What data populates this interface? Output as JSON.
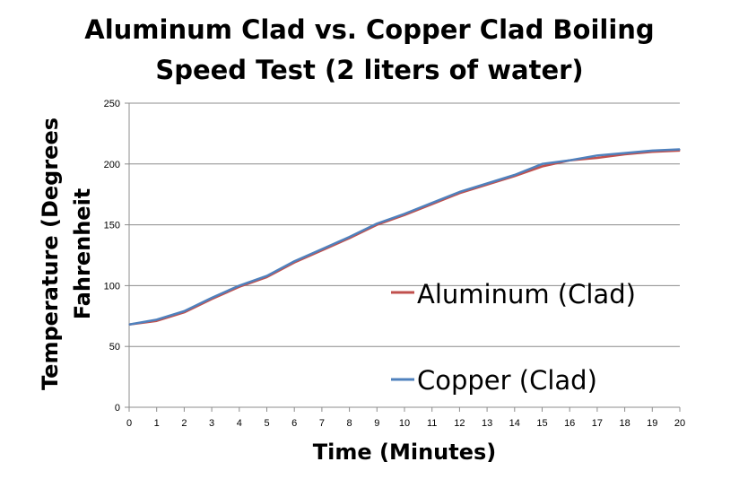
{
  "chart_data": {
    "type": "line",
    "title_lines": [
      "Aluminum Clad vs. Copper Clad Boiling",
      "Speed Test (2 liters of water)"
    ],
    "xlabel": "Time (Minutes)",
    "ylabel_lines": [
      "Temperature (Degrees",
      "Fahrenheit"
    ],
    "x": [
      0,
      1,
      2,
      3,
      4,
      5,
      6,
      7,
      8,
      9,
      10,
      11,
      12,
      13,
      14,
      15,
      16,
      17,
      18,
      19,
      20
    ],
    "xlim": [
      0,
      20
    ],
    "ylim": [
      0,
      250
    ],
    "yticks": [
      0,
      50,
      100,
      150,
      200,
      250
    ],
    "grid": true,
    "legend_position": "right",
    "series": [
      {
        "name": "Aluminum (Clad)",
        "color": "#c0504d",
        "values": [
          68,
          71,
          78,
          89,
          99,
          107,
          119,
          129,
          139,
          150,
          158,
          167,
          176,
          183,
          190,
          198,
          203,
          205,
          208,
          210,
          211
        ]
      },
      {
        "name": "Copper (Clad)",
        "color": "#4f81bd",
        "values": [
          68,
          72,
          79,
          90,
          100,
          108,
          120,
          130,
          140,
          151,
          159,
          168,
          177,
          184,
          191,
          200,
          203,
          207,
          209,
          211,
          212
        ]
      }
    ]
  }
}
